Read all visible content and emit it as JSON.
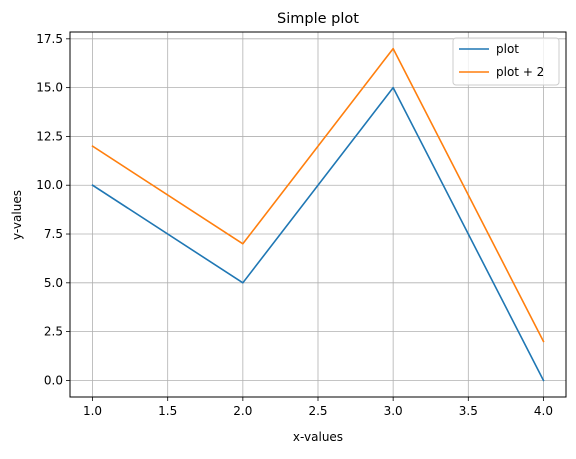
{
  "chart_data": {
    "type": "line",
    "title": "Simple plot",
    "xlabel": "x-values",
    "ylabel": "y-values",
    "x": [
      1.0,
      2.0,
      3.0,
      4.0
    ],
    "xlim": [
      0.85,
      4.15
    ],
    "ylim": [
      -0.85,
      17.85
    ],
    "xticks": [
      1.0,
      1.5,
      2.0,
      2.5,
      3.0,
      3.5,
      4.0
    ],
    "xtick_labels": [
      "1.0",
      "1.5",
      "2.0",
      "2.5",
      "3.0",
      "3.5",
      "4.0"
    ],
    "yticks": [
      0.0,
      2.5,
      5.0,
      7.5,
      10.0,
      12.5,
      15.0,
      17.5
    ],
    "ytick_labels": [
      "0.0",
      "2.5",
      "5.0",
      "7.5",
      "10.0",
      "12.5",
      "15.0",
      "17.5"
    ],
    "grid": true,
    "legend_position": "top-right",
    "series": [
      {
        "name": "plot",
        "values": [
          10,
          5,
          15,
          0
        ],
        "color": "#1f77b4"
      },
      {
        "name": "plot + 2",
        "values": [
          12,
          7,
          17,
          2
        ],
        "color": "#ff7f0e"
      }
    ]
  }
}
